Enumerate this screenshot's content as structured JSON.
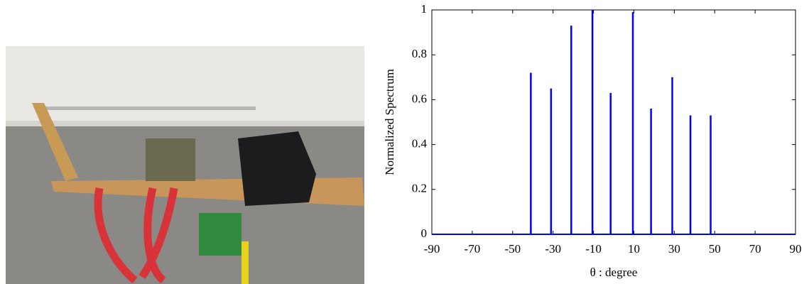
{
  "chart_data": {
    "type": "stem",
    "x_label": "θ : degree",
    "y_label": "Normalized Spectrum",
    "x": [
      -41,
      -31,
      -21,
      -10.5,
      -1.5,
      9.5,
      18.5,
      29,
      38,
      48
    ],
    "values": [
      0.72,
      0.65,
      0.93,
      1.0,
      0.63,
      0.99,
      0.56,
      0.7,
      0.53,
      0.53
    ],
    "color": "#0000ff",
    "xlim": [
      -90,
      90
    ],
    "xticks": [
      -90,
      -70,
      -50,
      -30,
      -10,
      10,
      30,
      50,
      70,
      90
    ],
    "ylim": [
      0,
      1
    ],
    "yticks": [
      0,
      0.2,
      0.4,
      0.6,
      0.8,
      1
    ]
  }
}
